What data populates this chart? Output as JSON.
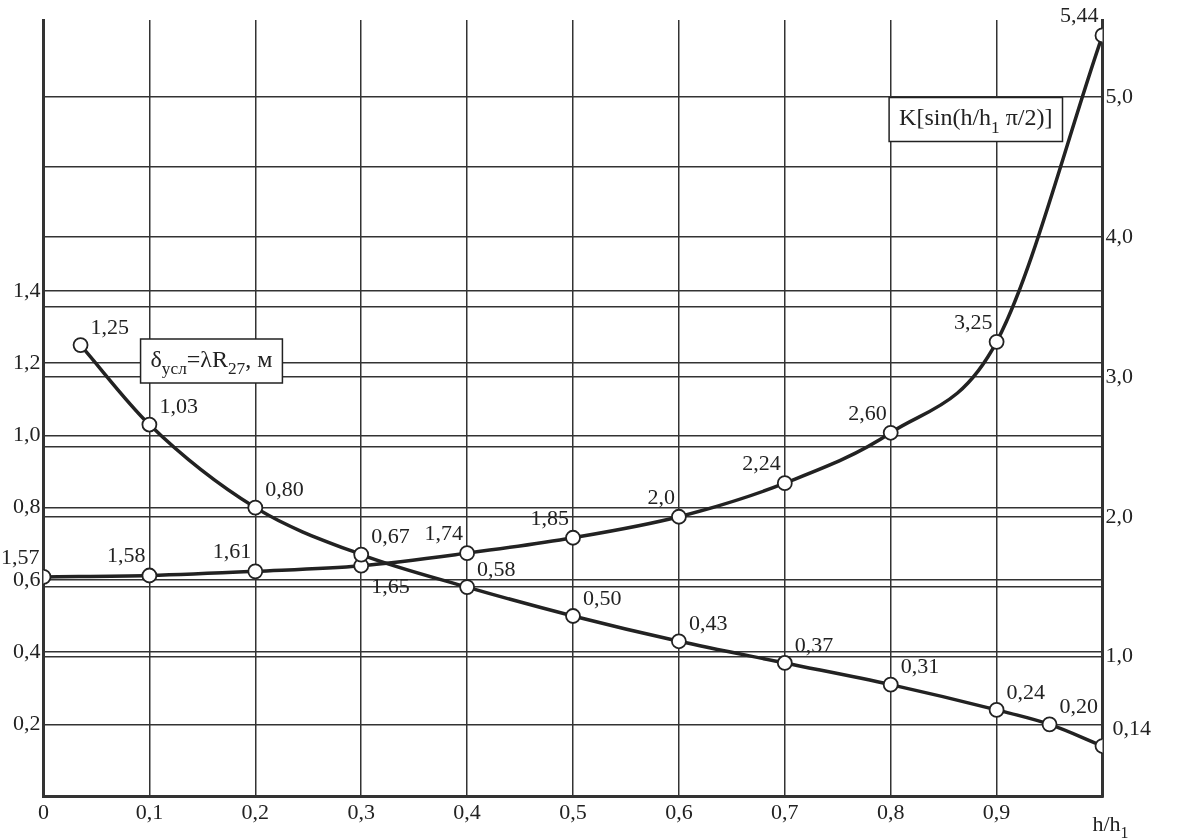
{
  "chart_data": {
    "type": "line",
    "xlabel": "h/h$_{1}$",
    "xlim": [
      0,
      1
    ],
    "xticks": [
      {
        "value": 0,
        "label": "0"
      },
      {
        "value": 0.1,
        "label": "0,1"
      },
      {
        "value": 0.2,
        "label": "0,2"
      },
      {
        "value": 0.3,
        "label": "0,3"
      },
      {
        "value": 0.4,
        "label": "0,4"
      },
      {
        "value": 0.5,
        "label": "0,5"
      },
      {
        "value": 0.6,
        "label": "0,6"
      },
      {
        "value": 0.7,
        "label": "0,7"
      },
      {
        "value": 0.8,
        "label": "0,8"
      },
      {
        "value": 0.9,
        "label": "0,9"
      },
      {
        "value": 1,
        "label": null
      }
    ],
    "ylim": [
      0,
      2.15
    ],
    "yticks": [
      {
        "value": 0.2,
        "label": "0,2"
      },
      {
        "value": 0.4,
        "label": "0,4"
      },
      {
        "value": 0.6,
        "label": "0,6"
      },
      {
        "value": 0.8,
        "label": "0,8"
      },
      {
        "value": 1.0,
        "label": "1,0"
      },
      {
        "value": 1.2,
        "label": "1,2"
      },
      {
        "value": 1.4,
        "label": "1,4"
      }
    ],
    "y2lim": [
      0,
      5.55
    ],
    "y2ticks": [
      {
        "value": 1,
        "label": "1,0"
      },
      {
        "value": 1.5,
        "label": null
      },
      {
        "value": 2,
        "label": "2,0"
      },
      {
        "value": 2.5,
        "label": null
      },
      {
        "value": 3,
        "label": "3,0"
      },
      {
        "value": 3.5,
        "label": null
      },
      {
        "value": 4,
        "label": "4,0"
      },
      {
        "value": 4.5,
        "label": null
      },
      {
        "value": 5,
        "label": "5,0"
      }
    ],
    "grid": true,
    "legend": false,
    "marker": "circle",
    "line_style": "solid",
    "series": [
      {
        "name": "δ$_{усл}$=λR$_{27}$, м",
        "color": "#222222",
        "x": [
          0.035,
          0.1,
          0.2,
          0.3,
          0.4,
          0.5,
          0.6,
          0.7,
          0.8,
          0.9,
          0.95,
          1.0
        ],
        "values": [
          1.25,
          1.03,
          0.8,
          0.67,
          0.58,
          0.5,
          0.43,
          0.37,
          0.31,
          0.24,
          0.2,
          0.14
        ],
        "value_labels": [
          "1,25",
          "1,03",
          "0,80",
          "0,67",
          "0,58",
          "0,50",
          "0,43",
          "0,37",
          "0,31",
          "0,24",
          "0,20",
          "0,14"
        ]
      },
      {
        "name": "K[sin(h/h$_{1}$ π/2)]",
        "color": "#222222",
        "axis": "y2",
        "x": [
          0,
          0.1,
          0.2,
          0.3,
          0.4,
          0.5,
          0.6,
          0.7,
          0.8,
          0.9,
          1.0
        ],
        "values": [
          1.57,
          1.58,
          1.61,
          1.65,
          1.74,
          1.85,
          2.0,
          2.24,
          2.6,
          3.25,
          5.44
        ],
        "value_labels": [
          "1,57",
          "1,58",
          "1,61",
          "1,65",
          "1,74",
          "1,85",
          "2,0",
          "2,24",
          "2,60",
          "3,25",
          "5,44"
        ]
      }
    ]
  }
}
